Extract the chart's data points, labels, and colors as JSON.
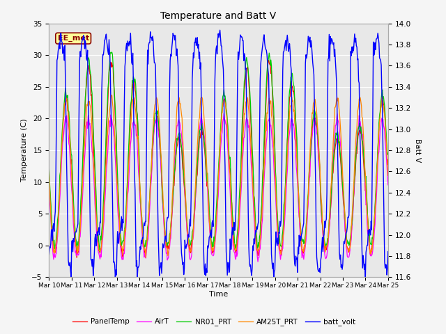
{
  "title": "Temperature and Batt V",
  "xlabel": "Time",
  "ylabel_left": "Temperature (C)",
  "ylabel_right": "Batt V",
  "annotation_text": "EE_met",
  "annotation_color": "#8B0000",
  "annotation_bg": "#FFFF99",
  "xlim": [
    0,
    15
  ],
  "ylim_left": [
    -5,
    35
  ],
  "ylim_right": [
    11.6,
    14.0
  ],
  "xtick_labels": [
    "Mar 10",
    "Mar 11",
    "Mar 12",
    "Mar 13",
    "Mar 14",
    "Mar 15",
    "Mar 16",
    "Mar 17",
    "Mar 18",
    "Mar 19",
    "Mar 20",
    "Mar 21",
    "Mar 22",
    "Mar 23",
    "Mar 24",
    "Mar 25"
  ],
  "background_color": "#e8e8e8",
  "plot_bg_color": "#dcdcdc",
  "grid_color": "#ffffff",
  "fig_bg_color": "#f5f5f5",
  "series_colors": {
    "PanelTemp": "#ff0000",
    "AirT": "#ff00ff",
    "NR01_PRT": "#00cc00",
    "AM25T_PRT": "#ff8800",
    "batt_volt": "#0000ff"
  },
  "legend_labels": [
    "PanelTemp",
    "AirT",
    "NR01_PRT",
    "AM25T_PRT",
    "batt_volt"
  ],
  "legend_colors": [
    "#ff0000",
    "#ff00ff",
    "#00cc00",
    "#ff8800",
    "#0000ff"
  ],
  "yticks_left": [
    -5,
    0,
    5,
    10,
    15,
    20,
    25,
    30,
    35
  ],
  "yticks_right": [
    11.6,
    11.8,
    12.0,
    12.2,
    12.4,
    12.6,
    12.8,
    13.0,
    13.2,
    13.4,
    13.6,
    13.8,
    14.0
  ]
}
